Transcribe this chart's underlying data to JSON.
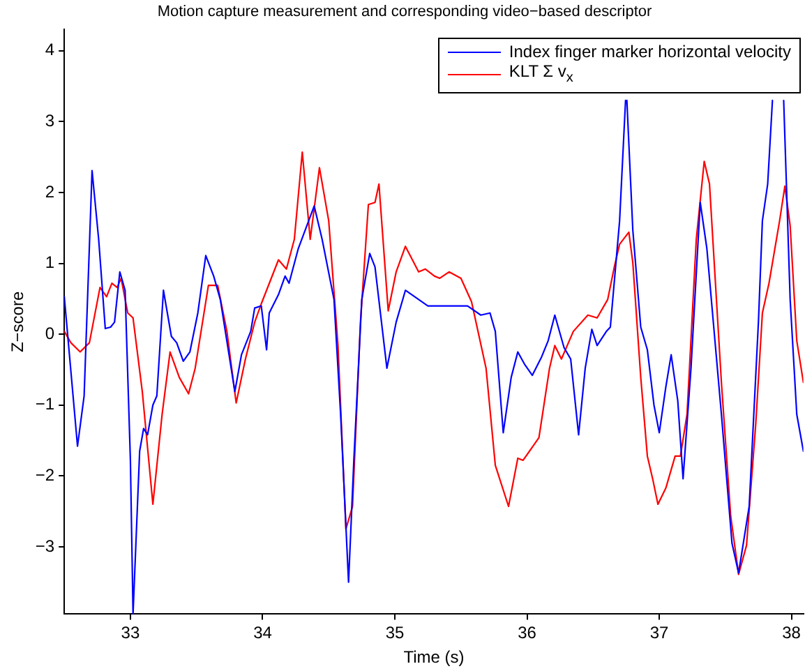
{
  "chart_data": {
    "type": "line",
    "title": "Motion capture measurement and corresponding video−based descriptor",
    "xlabel": "Time (s)",
    "ylabel": "Z−score",
    "xlim": [
      32.5,
      38.09
    ],
    "xticks": [
      33,
      34,
      35,
      36,
      37,
      38
    ],
    "ylim": [
      -3.95,
      4.3
    ],
    "yticks": [
      -3,
      -2,
      -1,
      0,
      1,
      2,
      3,
      4
    ],
    "grid": false,
    "legend": "top right",
    "marker": "none",
    "line_style": "solid",
    "series": [
      {
        "name": "Index finger marker horizontal velocity",
        "color": "#0000ff",
        "x": [
          32.5,
          32.6,
          32.65,
          32.71,
          32.76,
          32.81,
          32.85,
          32.88,
          32.92,
          32.96,
          33.0,
          33.02,
          33.07,
          33.1,
          33.13,
          33.17,
          33.2,
          33.25,
          33.31,
          33.35,
          33.4,
          33.45,
          33.51,
          33.57,
          33.63,
          33.68,
          33.79,
          33.84,
          33.91,
          33.94,
          33.99,
          34.03,
          34.05,
          34.12,
          34.17,
          34.2,
          34.27,
          34.39,
          34.45,
          34.54,
          34.59,
          34.65,
          34.69,
          34.75,
          34.81,
          34.85,
          34.94,
          35.01,
          35.08,
          35.15,
          35.25,
          35.36,
          35.55,
          35.65,
          35.72,
          35.76,
          35.82,
          35.88,
          35.93,
          35.98,
          36.04,
          36.11,
          36.16,
          36.21,
          36.28,
          36.33,
          36.39,
          36.44,
          36.49,
          36.53,
          36.6,
          36.63,
          36.7,
          36.745,
          36.75,
          36.755,
          36.8,
          36.86,
          36.91,
          36.96,
          37.0,
          37.05,
          37.09,
          37.14,
          37.18,
          37.24,
          37.31,
          37.36,
          37.47,
          37.55,
          37.6,
          37.68,
          37.75,
          37.78,
          37.82,
          37.856,
          37.87,
          37.9,
          37.93,
          37.941,
          37.99,
          38.04,
          38.09
        ],
        "values": [
          0.53,
          -1.58,
          -0.87,
          2.31,
          1.34,
          0.08,
          0.1,
          0.17,
          0.88,
          0.62,
          -1.78,
          -3.95,
          -1.65,
          -1.33,
          -1.42,
          -1.0,
          -0.87,
          0.62,
          -0.03,
          -0.12,
          -0.38,
          -0.25,
          0.3,
          1.11,
          0.82,
          0.49,
          -0.81,
          -0.29,
          0.04,
          0.37,
          0.4,
          -0.22,
          0.3,
          0.56,
          0.82,
          0.72,
          1.21,
          1.81,
          1.34,
          0.49,
          -1.13,
          -3.5,
          -1.78,
          0.49,
          1.14,
          0.95,
          -0.48,
          0.17,
          0.62,
          0.53,
          0.4,
          0.4,
          0.4,
          0.27,
          0.3,
          0.04,
          -1.39,
          -0.61,
          -0.25,
          -0.42,
          -0.58,
          -0.32,
          -0.09,
          0.27,
          -0.19,
          -0.35,
          -1.42,
          -0.48,
          0.07,
          -0.16,
          0.04,
          0.1,
          1.6,
          3.3,
          null,
          3.3,
          1.47,
          0.1,
          -0.22,
          -1.0,
          -1.39,
          -0.74,
          -0.29,
          -0.94,
          -2.04,
          -0.48,
          1.86,
          1.21,
          -1.13,
          -2.95,
          -3.37,
          -2.43,
          0.17,
          1.6,
          2.12,
          3.3,
          null,
          null,
          null,
          3.3,
          0.49,
          -1.13,
          -1.65
        ]
      },
      {
        "name": "KLT Σ v$_{x}$",
        "color": "#ff0000",
        "x": [
          32.5,
          32.55,
          32.62,
          32.69,
          32.77,
          32.82,
          32.86,
          32.9,
          32.93,
          32.98,
          33.02,
          33.09,
          33.17,
          33.24,
          33.3,
          33.37,
          33.44,
          33.49,
          33.59,
          33.66,
          33.73,
          33.8,
          33.87,
          33.94,
          33.99,
          34.12,
          34.18,
          34.24,
          34.3,
          34.36,
          34.43,
          34.5,
          34.57,
          34.63,
          34.68,
          34.74,
          34.8,
          34.85,
          34.88,
          34.95,
          35.01,
          35.08,
          35.18,
          35.23,
          35.3,
          35.34,
          35.41,
          35.5,
          35.58,
          35.69,
          35.76,
          35.86,
          35.93,
          35.97,
          36.09,
          36.17,
          36.21,
          36.26,
          36.35,
          36.46,
          36.53,
          36.61,
          36.66,
          36.7,
          36.77,
          36.8,
          36.86,
          36.91,
          36.95,
          36.99,
          37.05,
          37.12,
          37.16,
          37.21,
          37.28,
          37.34,
          37.38,
          37.47,
          37.54,
          37.6,
          37.66,
          37.73,
          37.78,
          37.83,
          37.91,
          37.95,
          37.99,
          38.04,
          38.09
        ],
        "values": [
          0.04,
          -0.12,
          -0.25,
          -0.12,
          0.66,
          0.53,
          0.72,
          0.66,
          0.79,
          0.3,
          0.23,
          -0.81,
          -2.4,
          -1.13,
          -0.25,
          -0.61,
          -0.84,
          -0.48,
          0.69,
          0.69,
          0.04,
          -0.97,
          -0.35,
          0.17,
          0.43,
          1.05,
          0.92,
          1.34,
          2.57,
          1.34,
          2.35,
          1.6,
          -0.16,
          -2.75,
          -2.43,
          0.17,
          1.83,
          1.86,
          2.12,
          0.33,
          0.88,
          1.24,
          0.88,
          0.92,
          0.82,
          0.79,
          0.88,
          0.79,
          0.46,
          -0.48,
          -1.85,
          -2.43,
          -1.75,
          -1.78,
          -1.46,
          -0.48,
          -0.16,
          -0.35,
          0.04,
          0.27,
          0.23,
          0.49,
          0.95,
          1.27,
          1.44,
          1.01,
          -0.61,
          -1.72,
          -2.04,
          -2.4,
          -2.17,
          -1.72,
          -1.72,
          -1.13,
          1.34,
          2.44,
          2.12,
          -0.68,
          -2.56,
          -3.39,
          -2.98,
          -1.26,
          0.3,
          0.72,
          1.6,
          2.09,
          1.53,
          -0.09,
          -0.68
        ]
      }
    ]
  }
}
